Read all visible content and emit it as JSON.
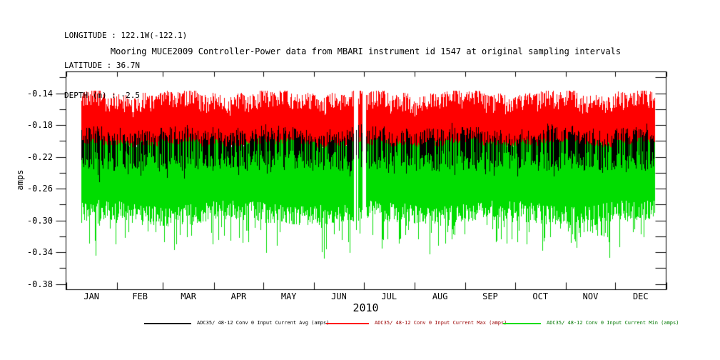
{
  "header": {
    "longitude": "LONGITUDE : 122.1W(-122.1)",
    "latitude": "LATITUDE : 36.7N",
    "depth": "DEPTH (m) : -2.5"
  },
  "title": "Mooring MUCE2009 Controller-Power data from MBARI instrument id 1547 at original sampling intervals",
  "chart_data": {
    "type": "line",
    "title": "Mooring MUCE2009 Controller-Power data from MBARI instrument id 1547 at original sampling intervals",
    "xlabel": "2010",
    "ylabel": "amps",
    "grid": false,
    "legend_position": "bottom",
    "x_axis": {
      "year": "2010",
      "unit": "month",
      "labels": [
        "JAN",
        "FEB",
        "MAR",
        "APR",
        "MAY",
        "JUN",
        "JUL",
        "AUG",
        "SEP",
        "OCT",
        "NOV",
        "DEC"
      ],
      "month_days": [
        31,
        28,
        31,
        30,
        31,
        30,
        31,
        31,
        30,
        31,
        30,
        31
      ]
    },
    "y_axis": {
      "range": [
        -0.387,
        -0.113
      ],
      "ticks": [
        -0.14,
        -0.18,
        -0.22,
        -0.26,
        -0.3,
        -0.34,
        -0.38
      ],
      "tick_labels": [
        "-0.14",
        "-0.18",
        "-0.22",
        "-0.26",
        "-0.30",
        "-0.34",
        "-0.38"
      ],
      "minor_step": 0.02
    },
    "data_coverage": {
      "start_day_of_year": 9,
      "end_day_of_year": 358,
      "gaps_day_of_year": [
        [
          175.1,
          177.7
        ],
        [
          179.9,
          182.1
        ]
      ],
      "gap_sliver_line_day": 176.6
    },
    "series": [
      {
        "name": "avg",
        "legend": "ADC35/ 48-12 Conv 0 Input Current Avg (amps)",
        "color": "#000000",
        "legend_text_color": "#000000",
        "band": {
          "top": -0.183,
          "top_jitter": 0.018,
          "bottom": -0.212,
          "bottom_jitter": 0.026,
          "deep_prob": 0.1,
          "deep_extra": 0.018,
          "draw_prob": 0.62,
          "top_typical": -0.19,
          "bottom_typical": -0.225
        }
      },
      {
        "name": "max",
        "legend": "ADC35/ 48-12 Conv 0 Input Current Max (amps)",
        "color": "#ff0000",
        "legend_text_color": "#990000",
        "band": {
          "top": -0.139,
          "top_jitter": 0.024,
          "bottom": -0.205,
          "bottom_jitter": 0.007,
          "top_typical": -0.15,
          "peak": -0.138,
          "bottom_typical": -0.206
        }
      },
      {
        "name": "min",
        "legend": "ADC35/ 48-12 Conv 0 Input Current Min (amps)",
        "color": "#00dd00",
        "legend_text_color": "#007700",
        "band": {
          "top": -0.198,
          "top_jitter": 0.008,
          "bottom": -0.278,
          "bottom_jitter": 0.026,
          "spike_prob": 0.2,
          "spike_extra": 0.045,
          "deep_spike_prob": 0.004,
          "deep_spike_extra": 0.05,
          "floor": -0.368,
          "top_typical": -0.202,
          "bottom_typical": -0.29,
          "spike_min": -0.368
        }
      }
    ]
  }
}
